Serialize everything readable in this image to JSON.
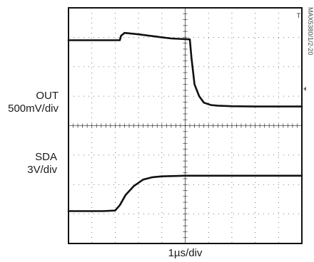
{
  "chart_data": {
    "type": "line",
    "title": "",
    "figure_id": "MAX5380/1/2-20",
    "trigger_marker": "T",
    "xlabel": "1µs/div",
    "x_divisions": 10,
    "y_divisions": 8,
    "grid": true,
    "series": [
      {
        "name": "OUT",
        "label_line1": "OUT",
        "label_line2": "500mV/div",
        "x": [
          0,
          1.2,
          2.2,
          2.25,
          2.4,
          3.0,
          4.0,
          4.4,
          5.2,
          5.27,
          5.4,
          5.6,
          5.8,
          6.1,
          6.4,
          7.0,
          8.0,
          10.0
        ],
        "y": [
          6.9,
          6.9,
          6.9,
          7.05,
          7.15,
          7.1,
          7.0,
          6.96,
          6.93,
          6.3,
          5.4,
          5.0,
          4.78,
          4.7,
          4.68,
          4.66,
          4.65,
          4.65
        ]
      },
      {
        "name": "SDA",
        "label_line1": "SDA",
        "label_line2": "3V/div",
        "x": [
          0,
          1.5,
          2.0,
          2.2,
          2.45,
          2.8,
          3.2,
          3.6,
          4.0,
          5.0,
          6.0,
          10.0
        ],
        "y": [
          1.1,
          1.1,
          1.12,
          1.3,
          1.65,
          1.95,
          2.17,
          2.25,
          2.28,
          2.3,
          2.3,
          2.3
        ]
      }
    ]
  }
}
